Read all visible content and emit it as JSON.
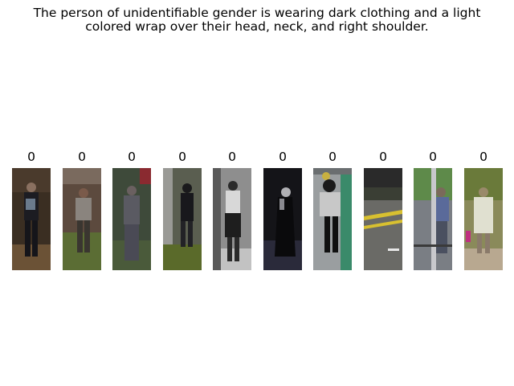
{
  "caption": "The person of unidentifiable gender is wearing dark clothing and a light colored wrap over their head, neck, and right shoulder.",
  "gallery": [
    {
      "score": "0"
    },
    {
      "score": "0"
    },
    {
      "score": "0"
    },
    {
      "score": "0"
    },
    {
      "score": "0"
    },
    {
      "score": "0"
    },
    {
      "score": "0"
    },
    {
      "score": "0"
    },
    {
      "score": "0"
    },
    {
      "score": "0"
    }
  ]
}
